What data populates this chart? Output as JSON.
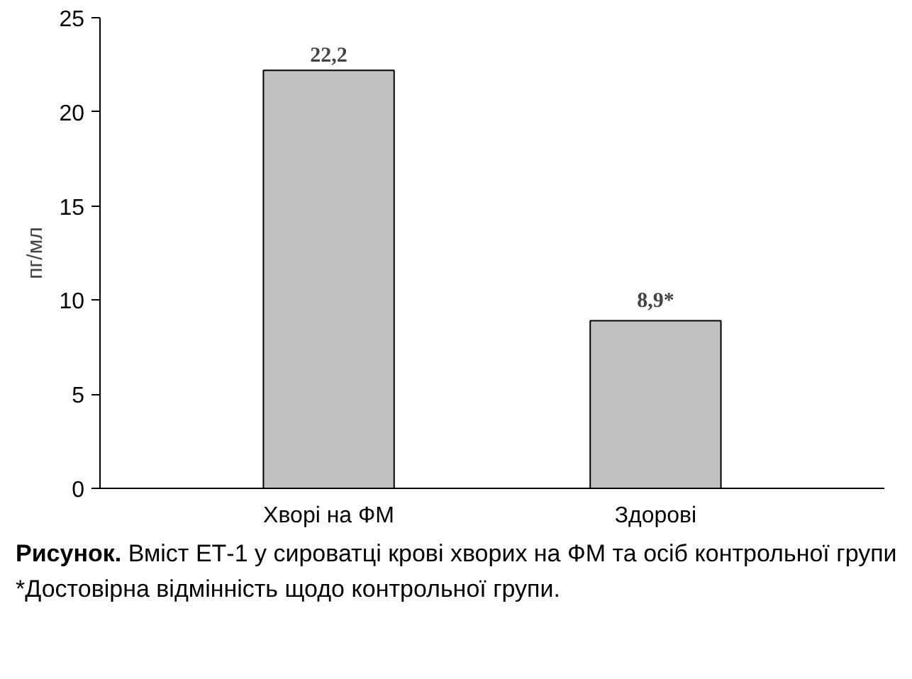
{
  "chart_data": {
    "type": "bar",
    "ylabel": "пг/мл",
    "categories": [
      "Хворі на ФМ",
      "Здорові"
    ],
    "values": [
      22.2,
      8.9
    ],
    "value_labels": [
      "22,2",
      "8,9*"
    ],
    "color": "#c0c0c0",
    "ylim": [
      0,
      25
    ],
    "yticks": [
      0,
      5,
      10,
      15,
      20,
      25
    ],
    "grid": false,
    "annotations": [
      "Рисунок. Вміст ЕТ-1 у сироватці крові хворих на ФМ та осіб контрольної групи",
      "*Достовірна відмінність щодо контрольної групи."
    ]
  }
}
